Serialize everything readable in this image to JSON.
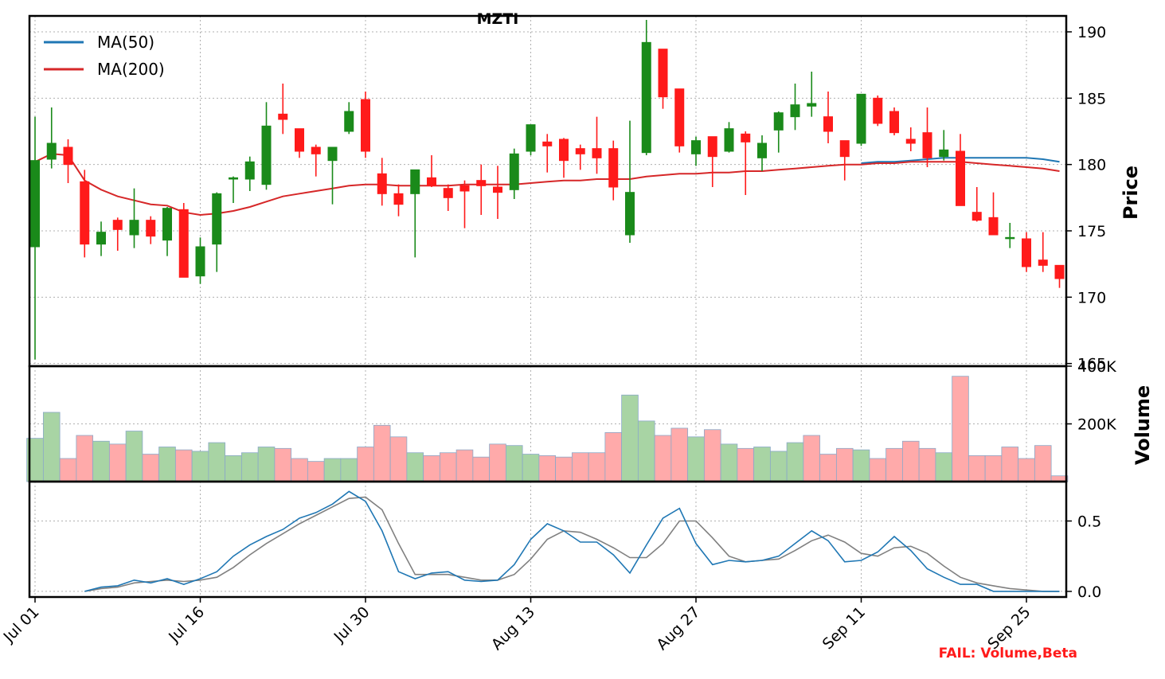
{
  "chart_data": {
    "type": "candlestick",
    "title": "MZTI",
    "dates": [
      "Jul 01",
      "Jul 02",
      "Jul 03",
      "Jul 05",
      "Jul 08",
      "Jul 09",
      "Jul 10",
      "Jul 11",
      "Jul 12",
      "Jul 15",
      "Jul 16",
      "Jul 17",
      "Jul 18",
      "Jul 19",
      "Jul 22",
      "Jul 23",
      "Jul 24",
      "Jul 25",
      "Jul 26",
      "Jul 29",
      "Jul 30",
      "Jul 31",
      "Aug 01",
      "Aug 02",
      "Aug 05",
      "Aug 06",
      "Aug 07",
      "Aug 08",
      "Aug 09",
      "Aug 12",
      "Aug 13",
      "Aug 14",
      "Aug 15",
      "Aug 16",
      "Aug 19",
      "Aug 20",
      "Aug 21",
      "Aug 22",
      "Aug 23",
      "Aug 26",
      "Aug 27",
      "Aug 28",
      "Aug 29",
      "Aug 30",
      "Sep 03",
      "Sep 04",
      "Sep 05",
      "Sep 06",
      "Sep 09",
      "Sep 10",
      "Sep 11",
      "Sep 12",
      "Sep 13",
      "Sep 16",
      "Sep 17",
      "Sep 18",
      "Sep 19",
      "Sep 20",
      "Sep 23",
      "Sep 24",
      "Sep 25",
      "Sep 26",
      "Sep 27"
    ],
    "x_tick_labels": [
      "Jul 01",
      "Jul 16",
      "Jul 30",
      "Aug 13",
      "Aug 27",
      "Sep 11",
      "Sep 25"
    ],
    "x_tick_index": [
      0,
      10,
      20,
      30,
      40,
      50,
      60
    ],
    "ohlc": [
      [
        173.8,
        183.6,
        165.3,
        180.3
      ],
      [
        180.4,
        184.3,
        179.7,
        181.6
      ],
      [
        181.3,
        181.9,
        178.6,
        180.0
      ],
      [
        178.7,
        179.6,
        173.0,
        174.0
      ],
      [
        174.0,
        175.7,
        173.1,
        174.9
      ],
      [
        175.8,
        176.0,
        173.5,
        175.1
      ],
      [
        174.7,
        178.2,
        173.7,
        175.8
      ],
      [
        175.8,
        176.1,
        174.0,
        174.6
      ],
      [
        174.3,
        176.8,
        173.1,
        176.7
      ],
      [
        176.6,
        177.1,
        171.5,
        171.5
      ],
      [
        171.6,
        174.5,
        171.0,
        173.8
      ],
      [
        174.0,
        177.9,
        171.9,
        177.8
      ],
      [
        178.9,
        179.1,
        177.1,
        179.0
      ],
      [
        178.9,
        180.6,
        178.0,
        180.2
      ],
      [
        178.5,
        184.7,
        178.1,
        182.9
      ],
      [
        183.8,
        186.1,
        182.3,
        183.4
      ],
      [
        182.7,
        182.7,
        180.5,
        181.0
      ],
      [
        181.3,
        181.5,
        179.1,
        180.8
      ],
      [
        180.3,
        181.3,
        177.0,
        181.3
      ],
      [
        182.5,
        184.7,
        182.3,
        184.0
      ],
      [
        184.9,
        185.5,
        180.5,
        181.0
      ],
      [
        179.3,
        180.5,
        176.9,
        177.8
      ],
      [
        177.8,
        178.5,
        176.1,
        177.0
      ],
      [
        177.8,
        179.6,
        173.0,
        179.6
      ],
      [
        179.0,
        180.7,
        178.3,
        178.4
      ],
      [
        178.2,
        178.5,
        176.5,
        177.5
      ],
      [
        178.4,
        178.8,
        175.2,
        178.0
      ],
      [
        178.8,
        180.0,
        176.2,
        178.4
      ],
      [
        178.3,
        179.9,
        175.9,
        177.9
      ],
      [
        178.1,
        181.2,
        177.4,
        180.8
      ],
      [
        181.0,
        183.0,
        180.7,
        183.0
      ],
      [
        181.7,
        182.3,
        179.4,
        181.4
      ],
      [
        181.9,
        182.0,
        179.0,
        180.3
      ],
      [
        181.2,
        181.5,
        179.6,
        180.8
      ],
      [
        181.2,
        183.6,
        179.3,
        180.5
      ],
      [
        181.2,
        181.8,
        177.3,
        178.3
      ],
      [
        174.7,
        183.3,
        174.1,
        177.9
      ],
      [
        180.9,
        190.9,
        180.7,
        189.2
      ],
      [
        188.7,
        188.7,
        184.2,
        185.1
      ],
      [
        185.7,
        185.7,
        180.9,
        181.4
      ],
      [
        180.8,
        182.1,
        179.9,
        181.8
      ],
      [
        182.1,
        182.1,
        178.3,
        180.6
      ],
      [
        181.0,
        183.2,
        180.9,
        182.7
      ],
      [
        182.3,
        182.5,
        177.7,
        181.7
      ],
      [
        180.5,
        182.2,
        179.5,
        181.6
      ],
      [
        182.6,
        184.0,
        180.9,
        183.9
      ],
      [
        183.6,
        186.1,
        182.6,
        184.5
      ],
      [
        184.4,
        187.0,
        183.6,
        184.6
      ],
      [
        183.6,
        185.5,
        181.6,
        182.5
      ],
      [
        181.8,
        181.8,
        178.8,
        180.6
      ],
      [
        181.6,
        185.3,
        181.4,
        185.3
      ],
      [
        185.0,
        185.2,
        182.9,
        183.1
      ],
      [
        184.0,
        184.3,
        182.2,
        182.4
      ],
      [
        181.9,
        182.8,
        181.0,
        181.6
      ],
      [
        182.4,
        184.3,
        179.8,
        180.5
      ],
      [
        180.6,
        182.6,
        180.3,
        181.1
      ],
      [
        181.0,
        182.3,
        176.9,
        176.9
      ],
      [
        176.4,
        178.3,
        175.7,
        175.8
      ],
      [
        176.0,
        177.9,
        174.7,
        174.7
      ],
      [
        174.5,
        175.6,
        173.7,
        174.5
      ],
      [
        174.4,
        174.9,
        171.9,
        172.3
      ],
      [
        172.8,
        174.9,
        171.9,
        172.4
      ],
      [
        172.4,
        172.4,
        170.7,
        171.4
      ]
    ],
    "ma50": [
      null,
      null,
      null,
      null,
      null,
      null,
      null,
      null,
      null,
      null,
      null,
      null,
      null,
      null,
      null,
      null,
      null,
      null,
      null,
      null,
      null,
      null,
      null,
      null,
      null,
      null,
      null,
      null,
      null,
      null,
      null,
      null,
      null,
      null,
      null,
      null,
      null,
      null,
      null,
      null,
      null,
      null,
      null,
      null,
      null,
      null,
      null,
      null,
      null,
      null,
      180.1,
      180.2,
      180.2,
      180.3,
      180.4,
      180.5,
      180.5,
      180.5,
      180.5,
      180.5,
      180.5,
      180.4,
      180.2
    ],
    "ma200": [
      180.2,
      180.8,
      180.7,
      178.8,
      178.1,
      177.6,
      177.3,
      177.0,
      176.9,
      176.4,
      176.2,
      176.3,
      176.5,
      176.8,
      177.2,
      177.6,
      177.8,
      178.0,
      178.2,
      178.4,
      178.5,
      178.5,
      178.4,
      178.4,
      178.4,
      178.4,
      178.5,
      178.5,
      178.5,
      178.5,
      178.6,
      178.7,
      178.8,
      178.8,
      178.9,
      178.9,
      178.9,
      179.1,
      179.2,
      179.3,
      179.3,
      179.4,
      179.4,
      179.5,
      179.5,
      179.6,
      179.7,
      179.8,
      179.9,
      180.0,
      180.0,
      180.1,
      180.1,
      180.2,
      180.2,
      180.2,
      180.2,
      180.1,
      180.0,
      179.9,
      179.8,
      179.7,
      179.5
    ],
    "volume": [
      150000,
      240000,
      80000,
      160000,
      140000,
      130000,
      175000,
      95000,
      120000,
      110000,
      105000,
      135000,
      90000,
      100000,
      120000,
      115000,
      80000,
      70000,
      80000,
      80000,
      120000,
      195000,
      155000,
      100000,
      90000,
      100000,
      110000,
      85000,
      130000,
      125000,
      95000,
      90000,
      85000,
      100000,
      100000,
      170000,
      300000,
      210000,
      160000,
      185000,
      155000,
      180000,
      130000,
      115000,
      120000,
      105000,
      135000,
      160000,
      95000,
      115000,
      110000,
      80000,
      115000,
      140000,
      115000,
      100000,
      365000,
      90000,
      90000,
      120000,
      80000,
      125000,
      20000
    ],
    "volume_up": [
      true,
      true,
      false,
      false,
      true,
      false,
      true,
      false,
      true,
      false,
      true,
      true,
      true,
      true,
      true,
      false,
      false,
      false,
      true,
      true,
      false,
      false,
      false,
      true,
      false,
      false,
      false,
      false,
      false,
      true,
      true,
      false,
      false,
      false,
      false,
      false,
      true,
      true,
      false,
      false,
      true,
      false,
      true,
      false,
      true,
      true,
      true,
      false,
      false,
      false,
      true,
      false,
      false,
      false,
      false,
      true,
      false,
      false,
      false,
      false,
      false,
      false,
      false
    ],
    "indicator_blue": [
      null,
      null,
      null,
      0.0,
      0.03,
      0.04,
      0.08,
      0.06,
      0.09,
      0.05,
      0.09,
      0.14,
      0.25,
      0.33,
      0.39,
      0.44,
      0.52,
      0.56,
      0.62,
      0.71,
      0.64,
      0.43,
      0.14,
      0.09,
      0.13,
      0.14,
      0.08,
      0.07,
      0.08,
      0.19,
      0.37,
      0.48,
      0.43,
      0.35,
      0.35,
      0.26,
      0.13,
      0.33,
      0.52,
      0.59,
      0.34,
      0.19,
      0.22,
      0.21,
      0.22,
      0.25,
      0.34,
      0.43,
      0.36,
      0.21,
      0.22,
      0.28,
      0.39,
      0.29,
      0.16,
      0.1,
      0.05,
      0.05,
      0.0,
      0.0,
      0.0,
      0.0,
      0.0
    ],
    "indicator_gray": [
      null,
      null,
      null,
      0.0,
      0.02,
      0.03,
      0.06,
      0.07,
      0.08,
      0.07,
      0.08,
      0.1,
      0.17,
      0.26,
      0.34,
      0.41,
      0.48,
      0.54,
      0.6,
      0.66,
      0.67,
      0.58,
      0.34,
      0.12,
      0.12,
      0.12,
      0.1,
      0.08,
      0.08,
      0.12,
      0.23,
      0.37,
      0.43,
      0.42,
      0.37,
      0.31,
      0.24,
      0.24,
      0.34,
      0.5,
      0.5,
      0.38,
      0.25,
      0.21,
      0.22,
      0.23,
      0.29,
      0.36,
      0.4,
      0.35,
      0.27,
      0.25,
      0.31,
      0.32,
      0.27,
      0.18,
      0.1,
      0.06,
      0.04,
      0.02,
      0.01,
      0.0,
      0.0
    ],
    "price_ylim": [
      164.8,
      191.2
    ],
    "price_ticks": [
      165,
      170,
      175,
      180,
      185,
      190
    ],
    "volume_ylim": [
      0,
      400000
    ],
    "volume_ticks": [
      200000,
      400000
    ],
    "volume_tick_labels": [
      "200K",
      "400K"
    ],
    "indicator_ylim": [
      -0.04,
      0.78
    ],
    "indicator_ticks": [
      0.0,
      0.5
    ],
    "indicator_tick_labels": [
      "0.0",
      "0.5"
    ],
    "ylabel_price": "Price",
    "ylabel_volume": "Volume",
    "grid": true,
    "legend_position": "top-left",
    "legend": [
      {
        "name": "MA(50)",
        "color": "#1f77b4"
      },
      {
        "name": "MA(200)",
        "color": "#d62728"
      }
    ],
    "colors": {
      "up": "#1a8a1a",
      "down": "#ff1a1a",
      "volume_up": "#a8d4a4",
      "volume_down": "#ffaaaa",
      "volume_edge": "#8aa8c8",
      "indicator_blue": "#1f77b4",
      "indicator_gray": "#808080"
    }
  },
  "annotation": {
    "text": "FAIL: Volume,Beta",
    "color": "#ff1a1a"
  }
}
